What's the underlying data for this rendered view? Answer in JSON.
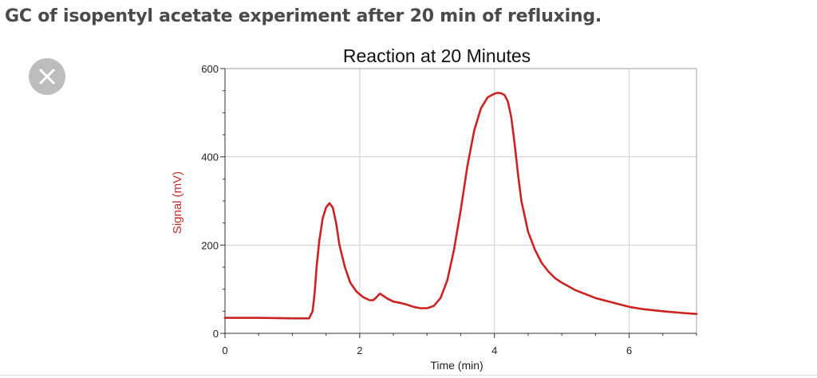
{
  "page": {
    "title": "GC of isopentyl acetate experiment after 20 min of refluxing."
  },
  "close_button": {
    "icon": "close-icon"
  },
  "chart_data": {
    "type": "line",
    "title": "Reaction at 20 Minutes",
    "xlabel": "Time (min)",
    "ylabel": "Signal (mV)",
    "xlim": [
      0,
      7
    ],
    "ylim": [
      0,
      600
    ],
    "xticks": [
      0,
      2,
      4,
      6
    ],
    "yticks": [
      0,
      200,
      400,
      600
    ],
    "grid": true,
    "colors": {
      "series": "#cc2222",
      "ylabel": "#c82a2a",
      "grid": "#cfcfcf",
      "frame": "#a0a0a0"
    },
    "series": [
      {
        "x": [
          0.0,
          0.5,
          1.0,
          1.25,
          1.3,
          1.33,
          1.36,
          1.4,
          1.45,
          1.5,
          1.55,
          1.6,
          1.65,
          1.7,
          1.78,
          1.86,
          1.95,
          2.05,
          2.15,
          2.2,
          2.25,
          2.3,
          2.35,
          2.42,
          2.5,
          2.6,
          2.7,
          2.8,
          2.9,
          3.0,
          3.1,
          3.2,
          3.3,
          3.4,
          3.5,
          3.6,
          3.7,
          3.8,
          3.9,
          4.0,
          4.05,
          4.1,
          4.15,
          4.2,
          4.25,
          4.3,
          4.35,
          4.4,
          4.5,
          4.6,
          4.7,
          4.8,
          4.9,
          5.0,
          5.2,
          5.5,
          5.8,
          6.0,
          6.2,
          6.5,
          6.8,
          7.0
        ],
        "y": [
          35,
          35,
          34,
          34,
          50,
          90,
          150,
          210,
          260,
          285,
          295,
          285,
          250,
          200,
          150,
          115,
          95,
          82,
          75,
          75,
          82,
          90,
          85,
          78,
          72,
          69,
          65,
          60,
          57,
          57,
          62,
          80,
          120,
          190,
          280,
          380,
          460,
          510,
          535,
          543,
          545,
          544,
          540,
          525,
          490,
          430,
          360,
          300,
          230,
          190,
          160,
          140,
          125,
          115,
          98,
          80,
          68,
          60,
          55,
          50,
          46,
          44
        ]
      }
    ]
  }
}
